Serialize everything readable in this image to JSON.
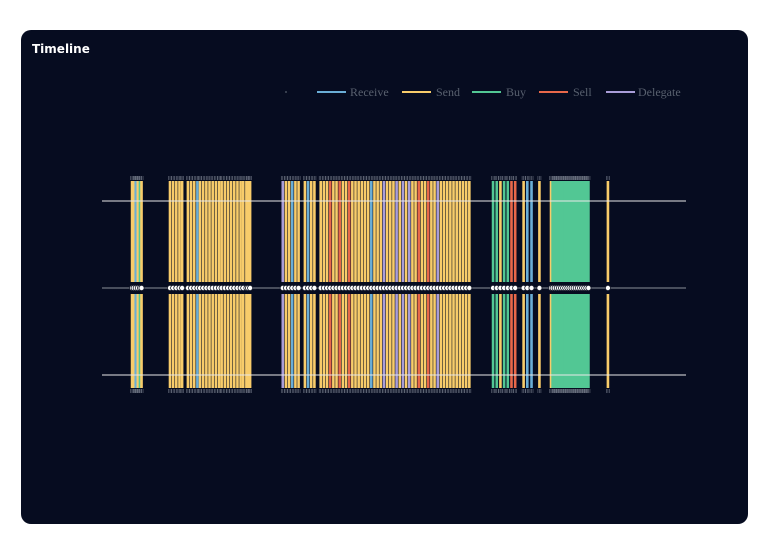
{
  "card": {
    "title": "Timeline"
  },
  "chart_data": {
    "type": "timeline",
    "title": "Timeline",
    "xlabel": "",
    "ylabel": "",
    "grid": false,
    "legend_placement": "top-right",
    "legend": [
      {
        "name": "Receive",
        "color": "#6aaed6"
      },
      {
        "name": "Send",
        "color": "#f8cc6a"
      },
      {
        "name": "Buy",
        "color": "#52c794"
      },
      {
        "name": "Sell",
        "color": "#e8684a"
      },
      {
        "name": "Delegate",
        "color": "#a99dd8"
      }
    ],
    "x_domain": [
      0,
      1000
    ],
    "events": [
      {
        "x": 2,
        "type": "Send"
      },
      {
        "x": 5,
        "type": "Send"
      },
      {
        "x": 9,
        "type": "Receive"
      },
      {
        "x": 13,
        "type": "Send"
      },
      {
        "x": 17,
        "type": "Buy"
      },
      {
        "x": 20,
        "type": "Send"
      },
      {
        "x": 74,
        "type": "Send"
      },
      {
        "x": 80,
        "type": "Send"
      },
      {
        "x": 86,
        "type": "Send"
      },
      {
        "x": 92,
        "type": "Send"
      },
      {
        "x": 97,
        "type": "Send"
      },
      {
        "x": 108,
        "type": "Send"
      },
      {
        "x": 114,
        "type": "Send"
      },
      {
        "x": 120,
        "type": "Send"
      },
      {
        "x": 126,
        "type": "Receive"
      },
      {
        "x": 131,
        "type": "Send"
      },
      {
        "x": 137,
        "type": "Send"
      },
      {
        "x": 143,
        "type": "Send"
      },
      {
        "x": 149,
        "type": "Send"
      },
      {
        "x": 155,
        "type": "Send"
      },
      {
        "x": 161,
        "type": "Send"
      },
      {
        "x": 167,
        "type": "Send"
      },
      {
        "x": 172,
        "type": "Send"
      },
      {
        "x": 178,
        "type": "Send"
      },
      {
        "x": 184,
        "type": "Send"
      },
      {
        "x": 190,
        "type": "Send"
      },
      {
        "x": 196,
        "type": "Send"
      },
      {
        "x": 202,
        "type": "Send"
      },
      {
        "x": 208,
        "type": "Send"
      },
      {
        "x": 213,
        "type": "Send"
      },
      {
        "x": 219,
        "type": "Send"
      },
      {
        "x": 222,
        "type": "Send"
      },
      {
        "x": 226,
        "type": "Send"
      },
      {
        "x": 288,
        "type": "Delegate"
      },
      {
        "x": 294,
        "type": "Send"
      },
      {
        "x": 300,
        "type": "Send"
      },
      {
        "x": 306,
        "type": "Receive"
      },
      {
        "x": 312,
        "type": "Send"
      },
      {
        "x": 318,
        "type": "Send"
      },
      {
        "x": 330,
        "type": "Send"
      },
      {
        "x": 336,
        "type": "Receive"
      },
      {
        "x": 342,
        "type": "Send"
      },
      {
        "x": 348,
        "type": "Send"
      },
      {
        "x": 360,
        "type": "Send"
      },
      {
        "x": 366,
        "type": "Send"
      },
      {
        "x": 372,
        "type": "Send"
      },
      {
        "x": 378,
        "type": "Sell"
      },
      {
        "x": 384,
        "type": "Send"
      },
      {
        "x": 390,
        "type": "Send"
      },
      {
        "x": 396,
        "type": "Sell"
      },
      {
        "x": 402,
        "type": "Send"
      },
      {
        "x": 408,
        "type": "Send"
      },
      {
        "x": 414,
        "type": "Sell"
      },
      {
        "x": 420,
        "type": "Send"
      },
      {
        "x": 426,
        "type": "Send"
      },
      {
        "x": 432,
        "type": "Send"
      },
      {
        "x": 438,
        "type": "Send"
      },
      {
        "x": 444,
        "type": "Send"
      },
      {
        "x": 450,
        "type": "Send"
      },
      {
        "x": 456,
        "type": "Receive"
      },
      {
        "x": 462,
        "type": "Send"
      },
      {
        "x": 468,
        "type": "Send"
      },
      {
        "x": 474,
        "type": "Send"
      },
      {
        "x": 480,
        "type": "Delegate"
      },
      {
        "x": 486,
        "type": "Send"
      },
      {
        "x": 492,
        "type": "Send"
      },
      {
        "x": 498,
        "type": "Send"
      },
      {
        "x": 504,
        "type": "Delegate"
      },
      {
        "x": 510,
        "type": "Send"
      },
      {
        "x": 516,
        "type": "Delegate"
      },
      {
        "x": 522,
        "type": "Send"
      },
      {
        "x": 528,
        "type": "Delegate"
      },
      {
        "x": 534,
        "type": "Send"
      },
      {
        "x": 540,
        "type": "Send"
      },
      {
        "x": 546,
        "type": "Sell"
      },
      {
        "x": 552,
        "type": "Send"
      },
      {
        "x": 558,
        "type": "Send"
      },
      {
        "x": 564,
        "type": "Sell"
      },
      {
        "x": 570,
        "type": "Send"
      },
      {
        "x": 576,
        "type": "Send"
      },
      {
        "x": 582,
        "type": "Delegate"
      },
      {
        "x": 588,
        "type": "Send"
      },
      {
        "x": 594,
        "type": "Send"
      },
      {
        "x": 600,
        "type": "Send"
      },
      {
        "x": 606,
        "type": "Send"
      },
      {
        "x": 612,
        "type": "Send"
      },
      {
        "x": 618,
        "type": "Send"
      },
      {
        "x": 624,
        "type": "Send"
      },
      {
        "x": 630,
        "type": "Send"
      },
      {
        "x": 636,
        "type": "Send"
      },
      {
        "x": 642,
        "type": "Send"
      },
      {
        "x": 687,
        "type": "Buy"
      },
      {
        "x": 694,
        "type": "Buy"
      },
      {
        "x": 701,
        "type": "Send"
      },
      {
        "x": 708,
        "type": "Buy"
      },
      {
        "x": 715,
        "type": "Buy"
      },
      {
        "x": 722,
        "type": "Sell"
      },
      {
        "x": 729,
        "type": "Sell"
      },
      {
        "x": 745,
        "type": "Send"
      },
      {
        "x": 752,
        "type": "Receive"
      },
      {
        "x": 760,
        "type": "Receive"
      },
      {
        "x": 775,
        "type": "Send"
      },
      {
        "x": 797,
        "type": "Send"
      },
      {
        "x": 800,
        "type": "Buy"
      },
      {
        "x": 804,
        "type": "Buy"
      },
      {
        "x": 808,
        "type": "Buy"
      },
      {
        "x": 812,
        "type": "Buy"
      },
      {
        "x": 816,
        "type": "Buy"
      },
      {
        "x": 820,
        "type": "Buy"
      },
      {
        "x": 824,
        "type": "Buy"
      },
      {
        "x": 828,
        "type": "Buy"
      },
      {
        "x": 832,
        "type": "Buy"
      },
      {
        "x": 836,
        "type": "Buy"
      },
      {
        "x": 840,
        "type": "Buy"
      },
      {
        "x": 844,
        "type": "Buy"
      },
      {
        "x": 848,
        "type": "Buy"
      },
      {
        "x": 852,
        "type": "Buy"
      },
      {
        "x": 856,
        "type": "Buy"
      },
      {
        "x": 860,
        "type": "Buy"
      },
      {
        "x": 864,
        "type": "Buy"
      },
      {
        "x": 868,
        "type": "Buy"
      },
      {
        "x": 905,
        "type": "Send"
      }
    ]
  }
}
